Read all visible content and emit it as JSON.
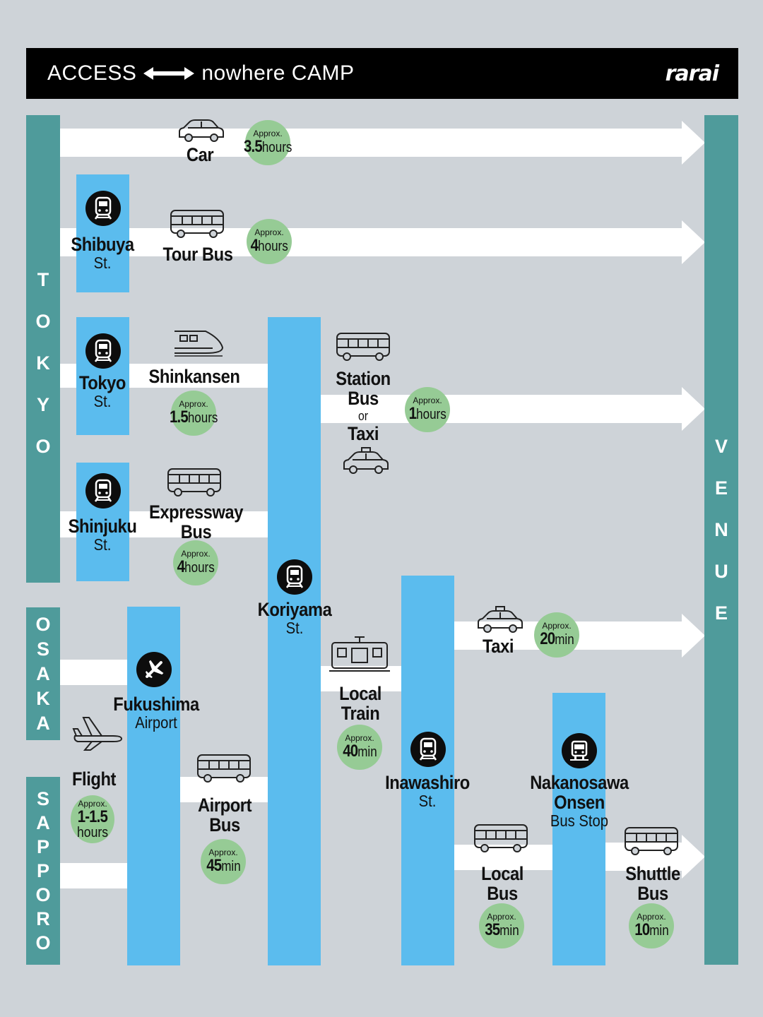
{
  "header": {
    "left": "ACCESS",
    "right": "nowhere CAMP",
    "brand": "rarai"
  },
  "regions": {
    "tokyo": [
      "T",
      "O",
      "K",
      "Y",
      "O"
    ],
    "osaka": [
      "O",
      "S",
      "A",
      "K",
      "A"
    ],
    "sapporo": [
      "S",
      "A",
      "P",
      "P",
      "O",
      "R",
      "O"
    ],
    "venue": [
      "V",
      "E",
      "N",
      "U",
      "E"
    ]
  },
  "stations": {
    "shibuya": {
      "name": "Shibuya",
      "sub": "St."
    },
    "tokyo": {
      "name": "Tokyo",
      "sub": "St."
    },
    "shinjuku": {
      "name": "Shinjuku",
      "sub": "St."
    },
    "fukushima": {
      "name": "Fukushima",
      "sub": "Airport"
    },
    "koriyama": {
      "name": "Koriyama",
      "sub": "St."
    },
    "inawashiro": {
      "name": "Inawashiro",
      "sub": "St."
    },
    "nakanosawa": {
      "name1": "Nakanosawa",
      "name2": "Onsen",
      "sub": "Bus Stop"
    }
  },
  "routes": {
    "car": {
      "label": "Car",
      "approx": "Approx.",
      "value": "3.5",
      "unit": "hours"
    },
    "tour_bus": {
      "label": "Tour Bus",
      "approx": "Approx.",
      "value": "4",
      "unit": "hours"
    },
    "shinkansen": {
      "label": "Shinkansen",
      "approx": "Approx.",
      "value": "1.5",
      "unit": "hours"
    },
    "expressway_bus": {
      "label1": "Expressway",
      "label2": "Bus",
      "approx": "Approx.",
      "value": "4",
      "unit": "hours"
    },
    "station_bus": {
      "label1": "Station",
      "label2": "Bus",
      "or": "or",
      "label3": "Taxi",
      "approx": "Approx.",
      "value": "1",
      "unit": "hours"
    },
    "taxi": {
      "label": "Taxi",
      "approx": "Approx.",
      "value": "20",
      "unit": "min"
    },
    "local_train": {
      "label1": "Local",
      "label2": "Train",
      "approx": "Approx.",
      "value": "40",
      "unit": "min"
    },
    "flight": {
      "label": "Flight",
      "approx": "Approx.",
      "value": "1-1.5",
      "unit": "hours"
    },
    "airport_bus": {
      "label1": "Airport",
      "label2": "Bus",
      "approx": "Approx.",
      "value": "45",
      "unit": "min"
    },
    "local_bus": {
      "label1": "Local",
      "label2": "Bus",
      "approx": "Approx.",
      "value": "35",
      "unit": "min"
    },
    "shuttle_bus": {
      "label1": "Shuttle",
      "label2": "Bus",
      "approx": "Approx.",
      "value": "10",
      "unit": "min"
    }
  },
  "colors": {
    "background": "#ced3d8",
    "header": "#000000",
    "region": "#4f9b9b",
    "station": "#5bbcee",
    "time_circle": "#96cb95",
    "arrow": "#ffffff"
  },
  "icons": [
    "car-icon",
    "bus-icon",
    "shinkansen-icon",
    "taxi-icon",
    "train-icon",
    "plane-icon",
    "bus-stop-icon"
  ]
}
